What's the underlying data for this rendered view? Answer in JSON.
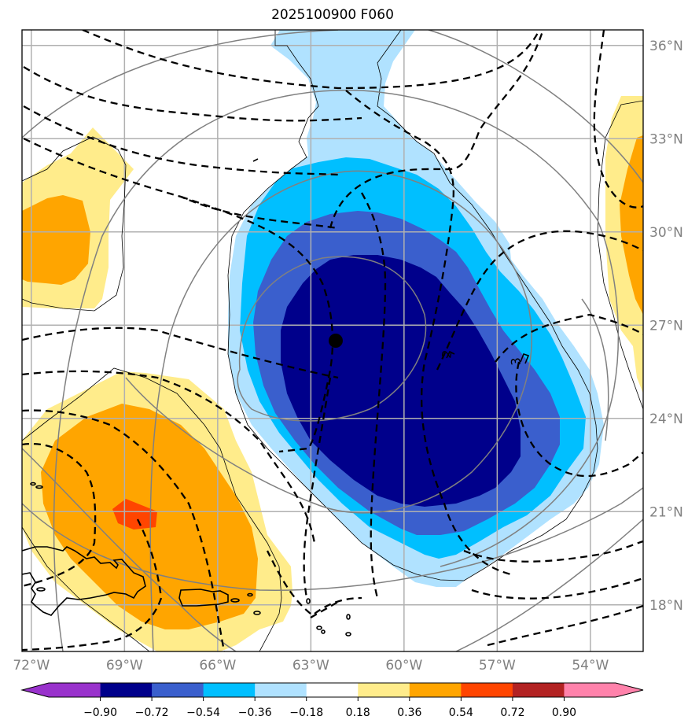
{
  "title": "2025100900 F060",
  "chart_data": {
    "type": "contour_map",
    "title": "2025100900 F060",
    "projection": "lat-lon",
    "lon_range": [
      -72.3,
      -52.3
    ],
    "lat_range": [
      16.5,
      36.5
    ],
    "x_ticks": [
      {
        "value": -72,
        "label": "72°W"
      },
      {
        "value": -69,
        "label": "69°W"
      },
      {
        "value": -66,
        "label": "66°W"
      },
      {
        "value": -63,
        "label": "63°W"
      },
      {
        "value": -60,
        "label": "60°W"
      },
      {
        "value": -57,
        "label": "57°W"
      },
      {
        "value": -54,
        "label": "54°W"
      }
    ],
    "y_ticks": [
      {
        "value": 36,
        "label": "36°N"
      },
      {
        "value": 33,
        "label": "33°N"
      },
      {
        "value": 30,
        "label": "30°N"
      },
      {
        "value": 27,
        "label": "27°N"
      },
      {
        "value": 24,
        "label": "24°N"
      },
      {
        "value": 21,
        "label": "21°N"
      },
      {
        "value": 18,
        "label": "18°N"
      }
    ],
    "grid": true,
    "center_marker": {
      "lon": -62.2,
      "lat": 26.5
    },
    "dashed_contour_labels": [
      "2",
      "3"
    ],
    "colorbar": {
      "orientation": "horizontal",
      "placement": "bottom",
      "extend": "both",
      "levels": [
        -0.9,
        -0.72,
        -0.54,
        -0.36,
        -0.18,
        0.18,
        0.36,
        0.54,
        0.72,
        0.9
      ],
      "tick_labels": [
        "−0.90",
        "−0.72",
        "−0.54",
        "−0.36",
        "−0.18",
        "0.18",
        "0.36",
        "0.54",
        "0.72",
        "0.90"
      ],
      "colors": [
        "#9932cc",
        "#00008b",
        "#3a5fcd",
        "#00bfff",
        "#b0e2ff",
        "#ffffff",
        "#ffec8b",
        "#ffa500",
        "#ff4500",
        "#b22222",
        "#ff82ab"
      ]
    },
    "shaded_regions": [
      {
        "name": "negative-anomaly",
        "range": "< -0.90 to -0.18",
        "peak_level": "< -0.72",
        "center_lon": -60,
        "center_lat": 25
      },
      {
        "name": "positive-anomaly-southwest",
        "range": "0.18 to 0.72",
        "peak_level": "0.54-0.72",
        "center_lon": -68,
        "center_lat": 21
      },
      {
        "name": "positive-anomaly-northwest",
        "range": "0.18 to 0.54",
        "center_lon": -72,
        "center_lat": 30
      },
      {
        "name": "positive-anomaly-east",
        "range": "0.18 to 0.54",
        "center_lon": -52.5,
        "center_lat": 29
      }
    ]
  }
}
